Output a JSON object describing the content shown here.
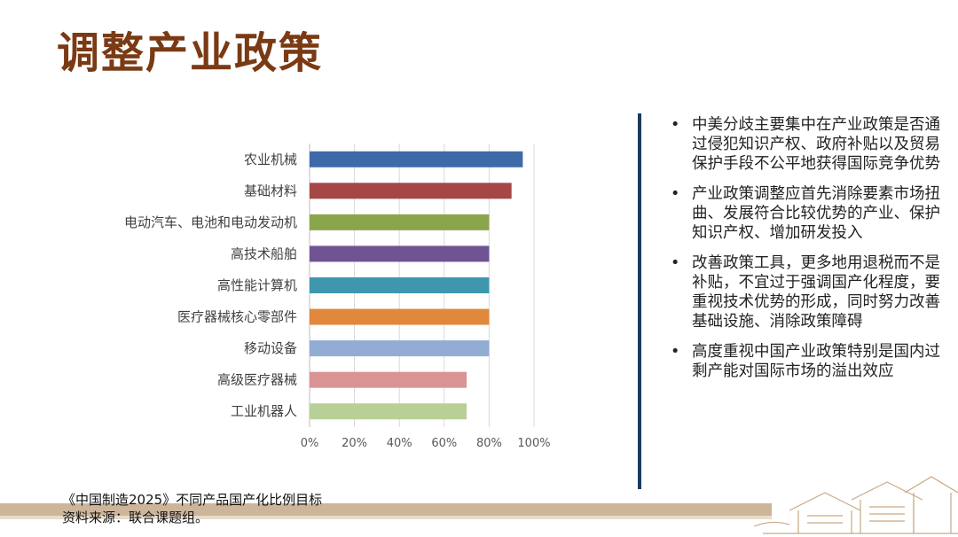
{
  "title": "调整产业政策",
  "chart_data": {
    "type": "bar",
    "orientation": "horizontal",
    "categories": [
      "农业机械",
      "基础材料",
      "电动汽车、电池和电动发动机",
      "高技术船舶",
      "高性能计算机",
      "医疗器械核心零部件",
      "移动设备",
      "高级医疗器械",
      "工业机器人"
    ],
    "values": [
      95,
      90,
      80,
      80,
      80,
      80,
      80,
      70,
      70
    ],
    "colors": [
      "#3e6aa8",
      "#a64747",
      "#8aa64c",
      "#6f5494",
      "#3f97ae",
      "#e0883c",
      "#93acd4",
      "#d99394",
      "#b8cf96"
    ],
    "xlim": [
      0,
      100
    ],
    "xticks": [
      "0%",
      "20%",
      "40%",
      "60%",
      "80%",
      "100%"
    ],
    "grid": true
  },
  "bullets": [
    "中美分歧主要集中在产业政策是否通过侵犯知识产权、政府补贴以及贸易保护手段不公平地获得国际竞争优势",
    "产业政策调整应首先消除要素市场扭曲、发展符合比较优势的产业、保护知识产权、增加研发投入",
    "改善政策工具，更多地用退税而不是补贴，不宜过于强调国产化程度，要重视技术优势的形成，同时努力改善基础设施、消除政策障碍",
    "高度重视中国产业政策特别是国内过剩产能对国际市场的溢出效应"
  ],
  "bullet_symbol": "•",
  "caption": "《中国制造2025》不同产品国产化比例目标",
  "source": "资料来源：联合课题组。"
}
